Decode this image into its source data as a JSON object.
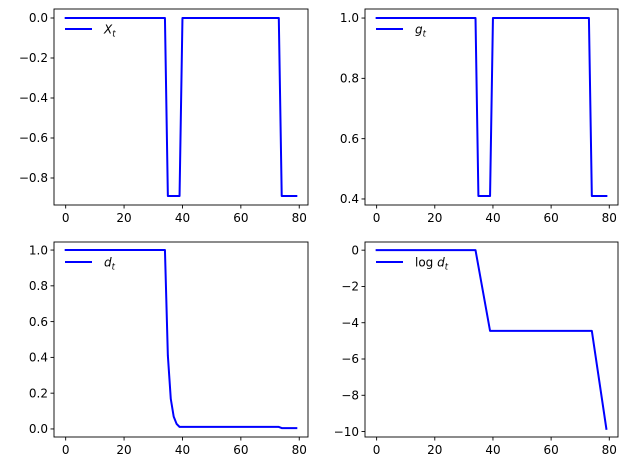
{
  "chart_data": [
    {
      "type": "line",
      "legend": {
        "position": "upper-left",
        "label_main": "X",
        "label_sub": "t",
        "italic_main": true
      },
      "xlim": [
        -4,
        83
      ],
      "ylim": [
        -0.935,
        0.045
      ],
      "xticks": [
        0,
        20,
        40,
        60,
        80
      ],
      "yticks": [
        0.0,
        -0.2,
        -0.4,
        -0.6,
        -0.8
      ],
      "ytick_labels": [
        "0.0",
        "−0.2",
        "−0.4",
        "−0.6",
        "−0.8"
      ],
      "grid": false,
      "color": "#0000ff",
      "series": [
        {
          "x": [
            0,
            34,
            35,
            39,
            40,
            73,
            74,
            79
          ],
          "y": [
            0,
            0,
            -0.89,
            -0.89,
            0,
            0,
            -0.89,
            -0.89
          ]
        }
      ]
    },
    {
      "type": "line",
      "legend": {
        "position": "upper-left",
        "label_main": "g",
        "label_sub": "t",
        "italic_main": true
      },
      "xlim": [
        -4,
        83
      ],
      "ylim": [
        0.38,
        1.03
      ],
      "xticks": [
        0,
        20,
        40,
        60,
        80
      ],
      "yticks": [
        1.0,
        0.8,
        0.6,
        0.4
      ],
      "ytick_labels": [
        "1.0",
        "0.8",
        "0.6",
        "0.4"
      ],
      "grid": false,
      "color": "#0000ff",
      "series": [
        {
          "x": [
            0,
            34,
            35,
            39,
            40,
            73,
            74,
            79
          ],
          "y": [
            1,
            1,
            0.41,
            0.41,
            1,
            1,
            0.41,
            0.41
          ]
        }
      ]
    },
    {
      "type": "line",
      "legend": {
        "position": "upper-left",
        "label_main": "d",
        "label_sub": "t",
        "italic_main": true
      },
      "xlim": [
        -4,
        83
      ],
      "ylim": [
        -0.045,
        1.045
      ],
      "xticks": [
        0,
        20,
        40,
        60,
        80
      ],
      "yticks": [
        1.0,
        0.8,
        0.6,
        0.4,
        0.2,
        0.0
      ],
      "ytick_labels": [
        "1.0",
        "0.8",
        "0.6",
        "0.4",
        "0.2",
        "0.0"
      ],
      "grid": false,
      "color": "#0000ff",
      "series": [
        {
          "x": [
            0,
            34,
            35,
            36,
            37,
            38,
            39,
            73,
            74,
            79
          ],
          "y": [
            1,
            1,
            0.41,
            0.168,
            0.069,
            0.028,
            0.0115,
            0.0115,
            0.0047,
            0.0047
          ]
        }
      ]
    },
    {
      "type": "line",
      "legend": {
        "position": "upper-left",
        "label_prefix": "log ",
        "label_main": "d",
        "label_sub": "t",
        "italic_main": true
      },
      "xlim": [
        -4,
        83
      ],
      "ylim": [
        -10.3,
        0.45
      ],
      "xticks": [
        0,
        20,
        40,
        60,
        80
      ],
      "yticks": [
        0,
        -2,
        -4,
        -6,
        -8,
        -10
      ],
      "ytick_labels": [
        "0",
        "−2",
        "−4",
        "−6",
        "−8",
        "−10"
      ],
      "grid": false,
      "color": "#0000ff",
      "series": [
        {
          "x": [
            0,
            34,
            39,
            74,
            79
          ],
          "y": [
            0,
            0,
            -4.45,
            -4.45,
            -9.85
          ]
        }
      ]
    }
  ]
}
